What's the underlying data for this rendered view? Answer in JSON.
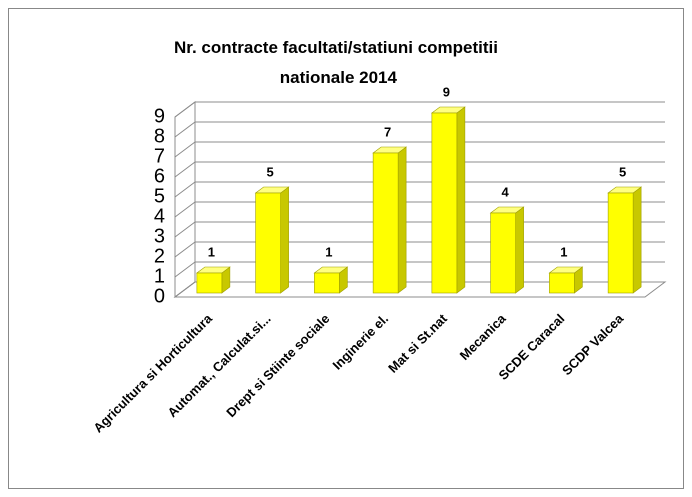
{
  "chart_data": {
    "type": "bar3d",
    "title": "Nr. contracte facultati/statiuni competitii nationale 2014",
    "categories": [
      "Agricultura si Horticultura",
      "Automat., Calculat.si...",
      "Drept si Stiinte sociale",
      "Inginerie el.",
      "Mat si St.nat",
      "Mecanica",
      "SCDE Caracal",
      "SCDP Valcea"
    ],
    "values": [
      1,
      5,
      1,
      7,
      9,
      4,
      1,
      5
    ],
    "color": "#ffff00",
    "ylim": [
      0,
      9
    ],
    "yticks": [
      0,
      1,
      2,
      3,
      4,
      5,
      6,
      7,
      8,
      9
    ],
    "grid": true
  }
}
